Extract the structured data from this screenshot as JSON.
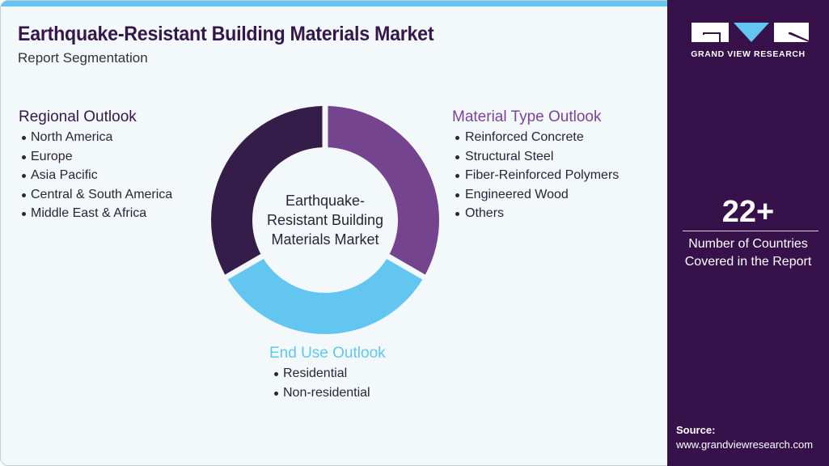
{
  "header": {
    "title": "Earthquake-Resistant Building Materials Market",
    "subtitle": "Report Segmentation"
  },
  "colors": {
    "dark_purple": "#36174a",
    "purple": "#74448f",
    "light_blue": "#63c6f0",
    "background": "#f3f8fb",
    "sidebar": "#37124a"
  },
  "diagram": {
    "center_label": "Earthquake-Resistant Building Materials Market",
    "center_lines": [
      "Earthquake-",
      "Resistant Building",
      "Materials Market"
    ],
    "segments": [
      {
        "name": "Material Type Outlook",
        "color": "#74448f",
        "start_deg": 0,
        "end_deg": 120
      },
      {
        "name": "End Use Outlook",
        "color": "#63c6f0",
        "start_deg": 120,
        "end_deg": 240
      },
      {
        "name": "Regional Outlook",
        "color": "#341d48",
        "start_deg": 240,
        "end_deg": 360
      }
    ]
  },
  "regional": {
    "heading": "Regional Outlook",
    "items": [
      "North America",
      "Europe",
      "Asia Pacific",
      "Central & South America",
      "Middle East & Africa"
    ]
  },
  "material": {
    "heading": "Material Type Outlook",
    "items": [
      "Reinforced Concrete",
      "Structural Steel",
      "Fiber-Reinforced Polymers",
      "Engineered Wood",
      "Others"
    ]
  },
  "enduse": {
    "heading": "End Use Outlook",
    "items": [
      "Residential",
      "Non-residential"
    ]
  },
  "sidebar": {
    "logo_text": "GRAND VIEW RESEARCH",
    "stat_value": "22+",
    "stat_label_line1": "Number of Countries",
    "stat_label_line2": "Covered in the Report",
    "source_title": "Source:",
    "source_url": "www.grandviewresearch.com"
  }
}
